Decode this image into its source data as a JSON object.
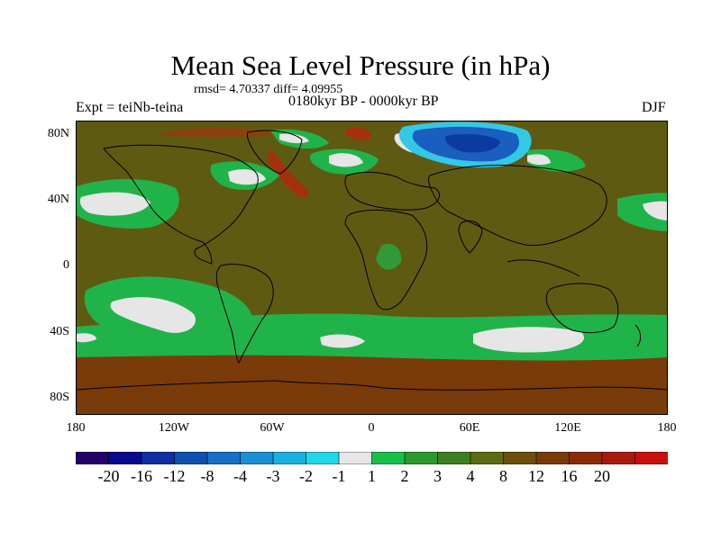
{
  "header": {
    "title": "Mean Sea Level Pressure (in hPa)",
    "stats": "rmsd= 4.70337 diff= 4.09955",
    "experiment": "Expt = teiNb-teina",
    "period": "0180kyr BP - 0000kyr BP",
    "season": "DJF"
  },
  "axes": {
    "y_ticks": [
      "80N",
      "40N",
      "0",
      "40S",
      "80S"
    ],
    "x_ticks": [
      "180",
      "120W",
      "60W",
      "0",
      "60E",
      "120E",
      "180"
    ]
  },
  "legend": {
    "colors": [
      "#24006b",
      "#0a0a8e",
      "#0f2fa3",
      "#0e4fb0",
      "#1570c8",
      "#1a8fd6",
      "#19b0e0",
      "#20d8e6",
      "#e6e6e6",
      "#18c04a",
      "#2a9a2a",
      "#3b7f1e",
      "#5e6a10",
      "#6d4f0a",
      "#7a3a08",
      "#8c2a08",
      "#a81b0a",
      "#c8110c"
    ],
    "labels": [
      "-20",
      "-16",
      "-12",
      "-8",
      "-4",
      "-3",
      "-2",
      "-1",
      "1",
      "2",
      "3",
      "4",
      "8",
      "12",
      "16",
      "20"
    ]
  },
  "map_colors": {
    "base": "#5e5a12",
    "south_band": "#7a3b0a",
    "red": "#a5300e",
    "green": "#20b34a",
    "mid_green": "#2f8c2a",
    "white": "#e6e6e6",
    "blue": "#1a5fc0",
    "deep_blue": "#0d3a9e",
    "cyan": "#33c8e6",
    "coast": "#000000"
  }
}
